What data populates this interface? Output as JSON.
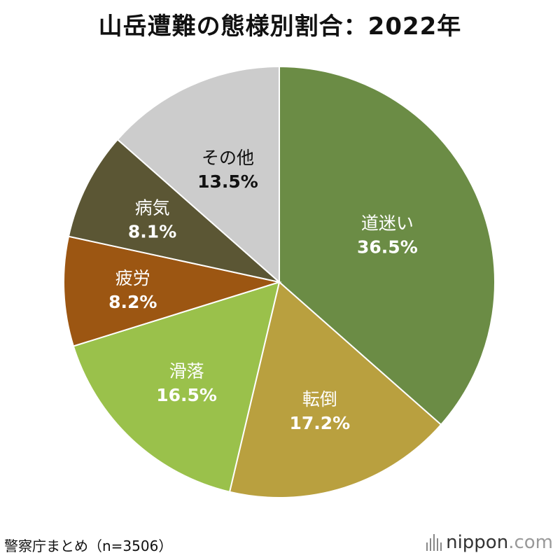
{
  "chart_data": {
    "type": "pie",
    "title": "山岳遭難の態様別割合：2022年",
    "slices": [
      {
        "label": "道迷い",
        "value": 36.5,
        "value_label": "36.5%",
        "color": "#6b8c45"
      },
      {
        "label": "転倒",
        "value": 17.2,
        "value_label": "17.2%",
        "color": "#b9a03f"
      },
      {
        "label": "滑落",
        "value": 16.5,
        "value_label": "16.5%",
        "color": "#9ac14b"
      },
      {
        "label": "疲労",
        "value": 8.2,
        "value_label": "8.2%",
        "color": "#9c5612"
      },
      {
        "label": "病気",
        "value": 8.1,
        "value_label": "8.1%",
        "color": "#5b5634"
      },
      {
        "label": "その他",
        "value": 13.5,
        "value_label": "13.5%",
        "color": "#cccccc"
      }
    ]
  },
  "source": "警察庁まとめ（n=3506）",
  "brand": {
    "name": "nippon",
    "suffix": ".com",
    "name_color": "#333333",
    "suffix_color": "#999999"
  }
}
